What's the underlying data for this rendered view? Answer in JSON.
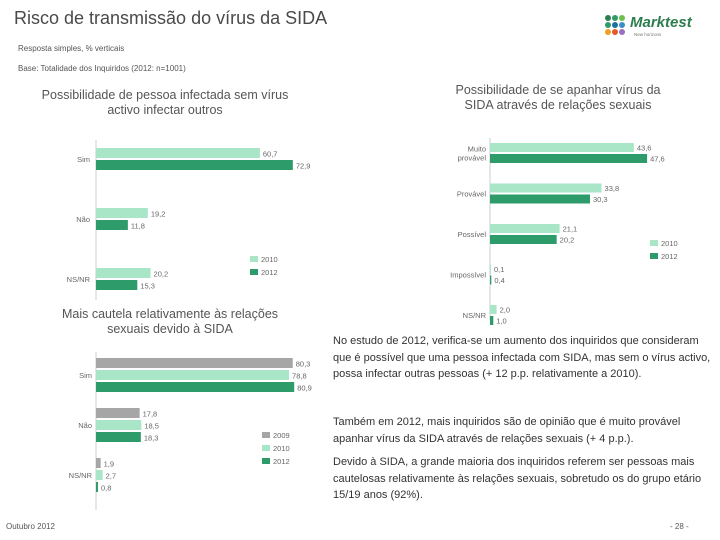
{
  "header": {
    "title": "Risco de transmissão do vírus da SIDA",
    "subtitle": "Resposta simples, % verticais",
    "base": "Base: Totalidade dos Inquiridos (2012: n=1001)"
  },
  "logo": {
    "name": "Marktest",
    "tagline": "New horizons"
  },
  "colors": {
    "c2009": "#a6a6a6",
    "c2010": "#a9e6c7",
    "c2012": "#2e9b6b"
  },
  "chart_data": [
    {
      "type": "bar",
      "orientation": "horizontal",
      "title": "Possibilidade de pessoa infectada sem vírus activo infectar outros",
      "categories": [
        "Sim",
        "Não",
        "NS/NR"
      ],
      "series": [
        {
          "name": "2010",
          "values": [
            60.7,
            19.2,
            20.2
          ],
          "labels": [
            "60,7",
            "19,2",
            "20,2"
          ]
        },
        {
          "name": "2012",
          "values": [
            72.9,
            11.8,
            15.3
          ],
          "labels": [
            "72,9",
            "11,8",
            "15,3"
          ]
        }
      ],
      "legend": [
        "2010",
        "2012"
      ],
      "legend_position": "bottom-right"
    },
    {
      "type": "bar",
      "orientation": "horizontal",
      "title": "Possibilidade de se apanhar vírus da SIDA através de relações sexuais",
      "categories": [
        "Muito provável",
        "Provável",
        "Possível",
        "Impossível",
        "NS/NR"
      ],
      "series": [
        {
          "name": "2010",
          "values": [
            43.6,
            33.8,
            21.1,
            0.1,
            2.0
          ],
          "labels": [
            "43,6",
            "33,8",
            "21,1",
            "0,1",
            "2,0"
          ]
        },
        {
          "name": "2012",
          "values": [
            47.6,
            30.3,
            20.2,
            0.4,
            1.0
          ],
          "labels": [
            "47,6",
            "30,3",
            "20,2",
            "0,4",
            "1,0"
          ]
        }
      ],
      "legend": [
        "2010",
        "2012"
      ],
      "legend_position": "right"
    },
    {
      "type": "bar",
      "orientation": "horizontal",
      "title": "Mais cautela relativamente às relações sexuais devido à SIDA",
      "categories": [
        "Sim",
        "Não",
        "NS/NR"
      ],
      "series": [
        {
          "name": "2009",
          "values": [
            80.3,
            17.8,
            1.9
          ],
          "labels": [
            "80,3",
            "17,8",
            "1,9"
          ]
        },
        {
          "name": "2010",
          "values": [
            78.8,
            18.5,
            2.7
          ],
          "labels": [
            "78,8",
            "18,5",
            "2,7"
          ]
        },
        {
          "name": "2012",
          "values": [
            80.9,
            18.3,
            0.8
          ],
          "labels": [
            "80,9",
            "18,3",
            "0,8"
          ]
        }
      ],
      "legend": [
        "2009",
        "2010",
        "2012"
      ],
      "legend_position": "bottom-right"
    }
  ],
  "text": {
    "p1": "No estudo de 2012, verifica-se um aumento dos inquiridos que consideram que é possível que uma pessoa infectada com SIDA, mas sem o vírus activo, possa infectar outras pessoas (+ 12 p.p. relativamente a 2010).",
    "p2": "Também em 2012, mais inquiridos são de opinião que é muito provável apanhar vírus da SIDA através de relações sexuais (+ 4 p.p.).",
    "p3": "Devido à SIDA, a grande maioria dos inquiridos referem ser pessoas mais cautelosas relativamente às relações sexuais, sobretudo os do grupo etário 15/19 anos (92%)."
  },
  "footer": {
    "date": "Outubro 2012",
    "page": "- 28 -"
  }
}
